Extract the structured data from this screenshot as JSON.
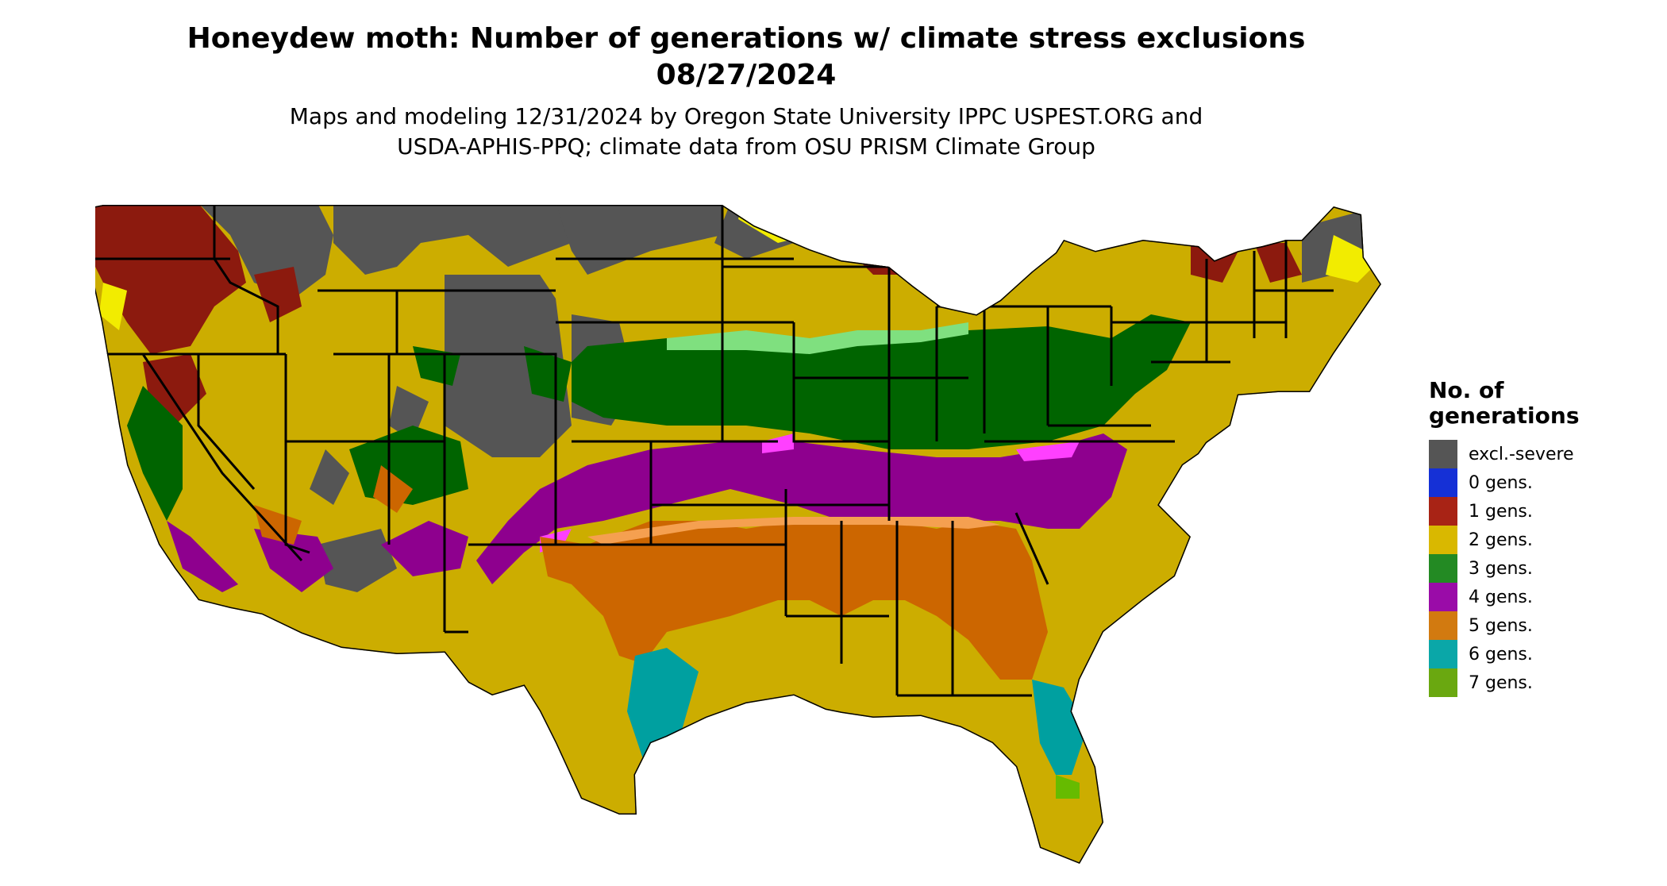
{
  "title": {
    "line1": "Honeydew moth: Number of generations w/ climate stress exclusions",
    "line2": "08/27/2024"
  },
  "subtitle": {
    "line1": "Maps and modeling 12/31/2024 by Oregon State University IPPC USPEST.ORG and",
    "line2": "USDA-APHIS-PPQ; climate data from OSU PRISM Climate Group"
  },
  "legend": {
    "title_line1": "No. of",
    "title_line2": "generations",
    "items": [
      {
        "label": "excl.-severe",
        "color": "#555555"
      },
      {
        "label": "0 gens.",
        "color": "#1530d6"
      },
      {
        "label": "1 gens.",
        "color": "#a82315"
      },
      {
        "label": "2 gens.",
        "color": "#d9b800"
      },
      {
        "label": "3 gens.",
        "color": "#238a23"
      },
      {
        "label": "4 gens.",
        "color": "#9a0ca8"
      },
      {
        "label": "5 gens.",
        "color": "#d27a10"
      },
      {
        "label": "6 gens.",
        "color": "#0aa7a8"
      },
      {
        "label": "7 gens.",
        "color": "#6aa810"
      }
    ]
  },
  "map": {
    "region": "contiguous-united-states",
    "colors": {
      "excl_severe": "#555555",
      "gen1": "#8c1a0e",
      "gen2": "#ccad00",
      "gen2_light": "#f2ec00",
      "gen3": "#006400",
      "gen3_light": "#7fe07f",
      "gen4": "#8e008e",
      "gen4_light": "#ff40ff",
      "gen5": "#cc6600",
      "gen5_light": "#f5a050",
      "gen6": "#00a0a0",
      "gen7": "#66bb00",
      "borders": "#000000"
    }
  }
}
